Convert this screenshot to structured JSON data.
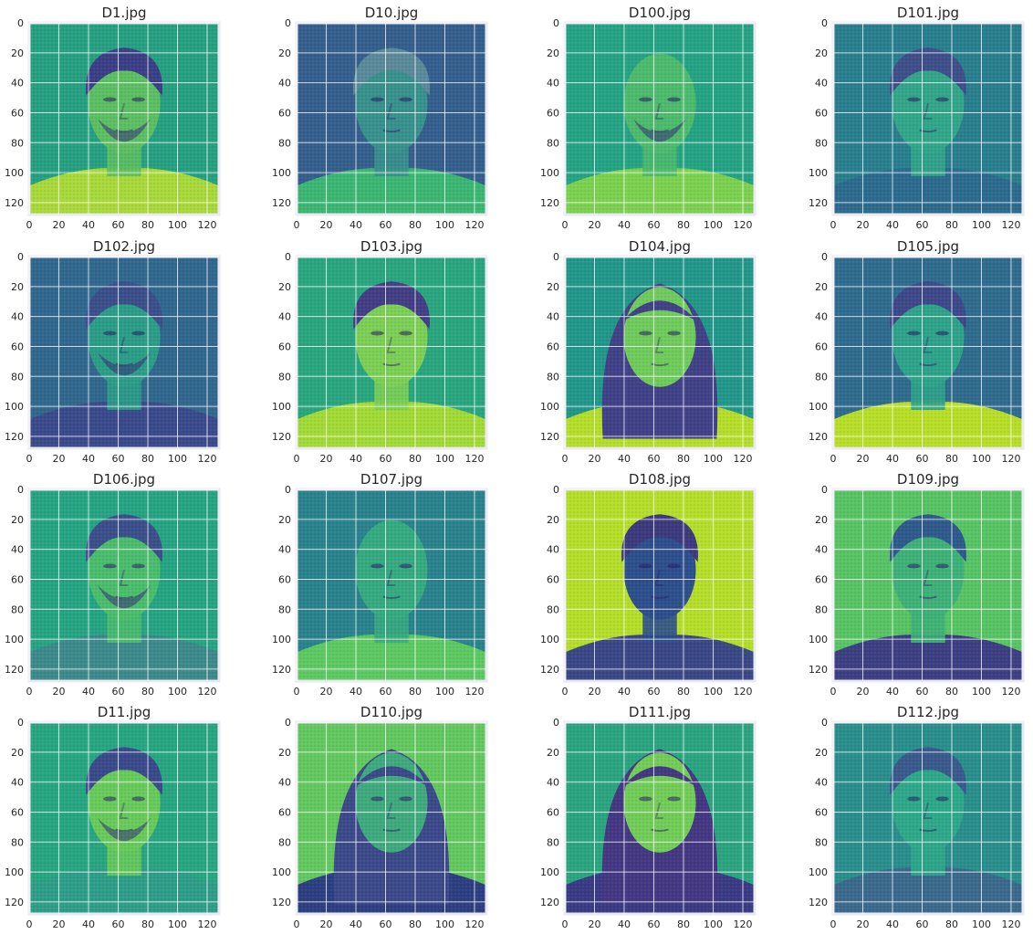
{
  "figure": {
    "grid": true,
    "colormap": "viridis",
    "rows": 4,
    "cols": 4
  },
  "chart_data": [
    {
      "type": "heatmap",
      "title": "D1.jpg",
      "xlim": [
        0,
        128
      ],
      "ylim": [
        128,
        0
      ],
      "x_ticks": [
        0,
        20,
        40,
        60,
        80,
        100,
        120
      ],
      "y_ticks": [
        0,
        20,
        40,
        60,
        80,
        100,
        120
      ],
      "bg": "#27a082",
      "subject": {
        "face": "#5cbf63",
        "hair": "#3b3f86",
        "shirt": "#a8d83a",
        "hair_style": "short-messy",
        "beard": true
      }
    },
    {
      "type": "heatmap",
      "title": "D10.jpg",
      "xlim": [
        0,
        128
      ],
      "ylim": [
        128,
        0
      ],
      "x_ticks": [
        0,
        20,
        40,
        60,
        80,
        100,
        120
      ],
      "y_ticks": [
        0,
        20,
        40,
        60,
        80,
        100,
        120
      ],
      "bg": "#355f8d",
      "subject": {
        "face": "#38918c",
        "hair": "#5b8a9a",
        "shirt": "#3cb673",
        "hair_style": "medium",
        "beard": false
      }
    },
    {
      "type": "heatmap",
      "title": "D100.jpg",
      "xlim": [
        0,
        128
      ],
      "ylim": [
        128,
        0
      ],
      "x_ticks": [
        0,
        20,
        40,
        60,
        80,
        100,
        120
      ],
      "y_ticks": [
        0,
        20,
        40,
        60,
        80,
        100,
        120
      ],
      "bg": "#25a384",
      "subject": {
        "face": "#4dba6e",
        "hair": "#3a8c7e",
        "shirt": "#7cd250",
        "hair_style": "bald",
        "beard": true
      }
    },
    {
      "type": "heatmap",
      "title": "D101.jpg",
      "xlim": [
        0,
        128
      ],
      "ylim": [
        128,
        0
      ],
      "x_ticks": [
        0,
        20,
        40,
        60,
        80,
        100,
        120
      ],
      "y_ticks": [
        0,
        20,
        40,
        60,
        80,
        100,
        120
      ],
      "bg": "#2a7f8e",
      "subject": {
        "face": "#33a68a",
        "hair": "#3f4f89",
        "shirt": "#2c6b8e",
        "hair_style": "short",
        "beard": false
      }
    },
    {
      "type": "heatmap",
      "title": "D102.jpg",
      "xlim": [
        0,
        128
      ],
      "ylim": [
        128,
        0
      ],
      "x_ticks": [
        0,
        20,
        40,
        60,
        80,
        100,
        120
      ],
      "y_ticks": [
        0,
        20,
        40,
        60,
        80,
        100,
        120
      ],
      "bg": "#31688e",
      "subject": {
        "face": "#2c9d87",
        "hair": "#3b4f8a",
        "shirt": "#3a4a8b",
        "hair_style": "short",
        "beard": true
      }
    },
    {
      "type": "heatmap",
      "title": "D103.jpg",
      "xlim": [
        0,
        128
      ],
      "ylim": [
        128,
        0
      ],
      "x_ticks": [
        0,
        20,
        40,
        60,
        80,
        100,
        120
      ],
      "y_ticks": [
        0,
        20,
        40,
        60,
        80,
        100,
        120
      ],
      "bg": "#2aa67f",
      "subject": {
        "face": "#7ccf55",
        "hair": "#433e85",
        "shirt": "#a2da37",
        "hair_style": "curly",
        "beard": false
      }
    },
    {
      "type": "heatmap",
      "title": "D104.jpg",
      "xlim": [
        0,
        128
      ],
      "ylim": [
        128,
        0
      ],
      "x_ticks": [
        0,
        20,
        40,
        60,
        80,
        100,
        120
      ],
      "y_ticks": [
        0,
        20,
        40,
        60,
        80,
        100,
        120
      ],
      "bg": "#22978a",
      "subject": {
        "face": "#6fcb5c",
        "hair": "#414287",
        "shirt": "#b5de2b",
        "hair_style": "long",
        "beard": false
      }
    },
    {
      "type": "heatmap",
      "title": "D105.jpg",
      "xlim": [
        0,
        128
      ],
      "ylim": [
        128,
        0
      ],
      "x_ticks": [
        0,
        20,
        40,
        60,
        80,
        100,
        120
      ],
      "y_ticks": [
        0,
        20,
        40,
        60,
        80,
        100,
        120
      ],
      "bg": "#2f6c8e",
      "subject": {
        "face": "#2fa38a",
        "hair": "#3e4989",
        "shirt": "#b8de29",
        "hair_style": "short",
        "beard": false
      }
    },
    {
      "type": "heatmap",
      "title": "D106.jpg",
      "xlim": [
        0,
        128
      ],
      "ylim": [
        128,
        0
      ],
      "x_ticks": [
        0,
        20,
        40,
        60,
        80,
        100,
        120
      ],
      "y_ticks": [
        0,
        20,
        40,
        60,
        80,
        100,
        120
      ],
      "bg": "#26a483",
      "subject": {
        "face": "#4bbd6d",
        "hair": "#3b4f8a",
        "shirt": "#3d8a8b",
        "hair_style": "short",
        "beard": true
      }
    },
    {
      "type": "heatmap",
      "title": "D107.jpg",
      "xlim": [
        0,
        128
      ],
      "ylim": [
        128,
        0
      ],
      "x_ticks": [
        0,
        20,
        40,
        60,
        80,
        100,
        120
      ],
      "y_ticks": [
        0,
        20,
        40,
        60,
        80,
        100,
        120
      ],
      "bg": "#2a838d",
      "subject": {
        "face": "#36aa80",
        "hair": "#2fa88a",
        "shirt": "#5ec962",
        "hair_style": "bald",
        "beard": false
      }
    },
    {
      "type": "heatmap",
      "title": "D108.jpg",
      "xlim": [
        0,
        128
      ],
      "ylim": [
        128,
        0
      ],
      "x_ticks": [
        0,
        20,
        40,
        60,
        80,
        100,
        120
      ],
      "y_ticks": [
        0,
        20,
        40,
        60,
        80,
        100,
        120
      ],
      "bg": "#b5de2b",
      "subject": {
        "face": "#2d4f8c",
        "hair": "#3d3a7e",
        "shirt": "#3a4886",
        "hair_style": "short",
        "beard": false
      }
    },
    {
      "type": "heatmap",
      "title": "D109.jpg",
      "xlim": [
        0,
        128
      ],
      "ylim": [
        128,
        0
      ],
      "x_ticks": [
        0,
        20,
        40,
        60,
        80,
        100,
        120
      ],
      "y_ticks": [
        0,
        20,
        40,
        60,
        80,
        100,
        120
      ],
      "bg": "#58c465",
      "subject": {
        "face": "#3fb178",
        "hair": "#2f5b8c",
        "shirt": "#3d3f83",
        "hair_style": "short",
        "beard": false
      }
    },
    {
      "type": "heatmap",
      "title": "D11.jpg",
      "xlim": [
        0,
        128
      ],
      "ylim": [
        128,
        0
      ],
      "x_ticks": [
        0,
        20,
        40,
        60,
        80,
        100,
        120
      ],
      "y_ticks": [
        0,
        20,
        40,
        60,
        80,
        100,
        120
      ],
      "bg": "#28a682",
      "subject": {
        "face": "#68ca5b",
        "hair": "#3a4a8a",
        "shirt": "#2f9e89",
        "hair_style": "short",
        "beard": true
      }
    },
    {
      "type": "heatmap",
      "title": "D110.jpg",
      "xlim": [
        0,
        128
      ],
      "ylim": [
        128,
        0
      ],
      "x_ticks": [
        0,
        20,
        40,
        60,
        80,
        100,
        120
      ],
      "y_ticks": [
        0,
        20,
        40,
        60,
        80,
        100,
        120
      ],
      "bg": "#63c860",
      "subject": {
        "face": "#3faa7d",
        "hair": "#3c4a8a",
        "shirt": "#2e3f81",
        "hair_style": "long",
        "beard": false
      }
    },
    {
      "type": "heatmap",
      "title": "D111.jpg",
      "xlim": [
        0,
        128
      ],
      "ylim": [
        128,
        0
      ],
      "x_ticks": [
        0,
        20,
        40,
        60,
        80,
        100,
        120
      ],
      "y_ticks": [
        0,
        20,
        40,
        60,
        80,
        100,
        120
      ],
      "bg": "#2ba47f",
      "subject": {
        "face": "#72cd58",
        "hair": "#443883",
        "shirt": "#3a3b84",
        "hair_style": "long",
        "beard": false
      }
    },
    {
      "type": "heatmap",
      "title": "D112.jpg",
      "xlim": [
        0,
        128
      ],
      "ylim": [
        128,
        0
      ],
      "x_ticks": [
        0,
        20,
        40,
        60,
        80,
        100,
        120
      ],
      "y_ticks": [
        0,
        20,
        40,
        60,
        80,
        100,
        120
      ],
      "bg": "#2a8f8c",
      "subject": {
        "face": "#2fa88a",
        "hair": "#3a5a8c",
        "shirt": "#3b6a8d",
        "hair_style": "messy",
        "beard": false
      }
    }
  ]
}
